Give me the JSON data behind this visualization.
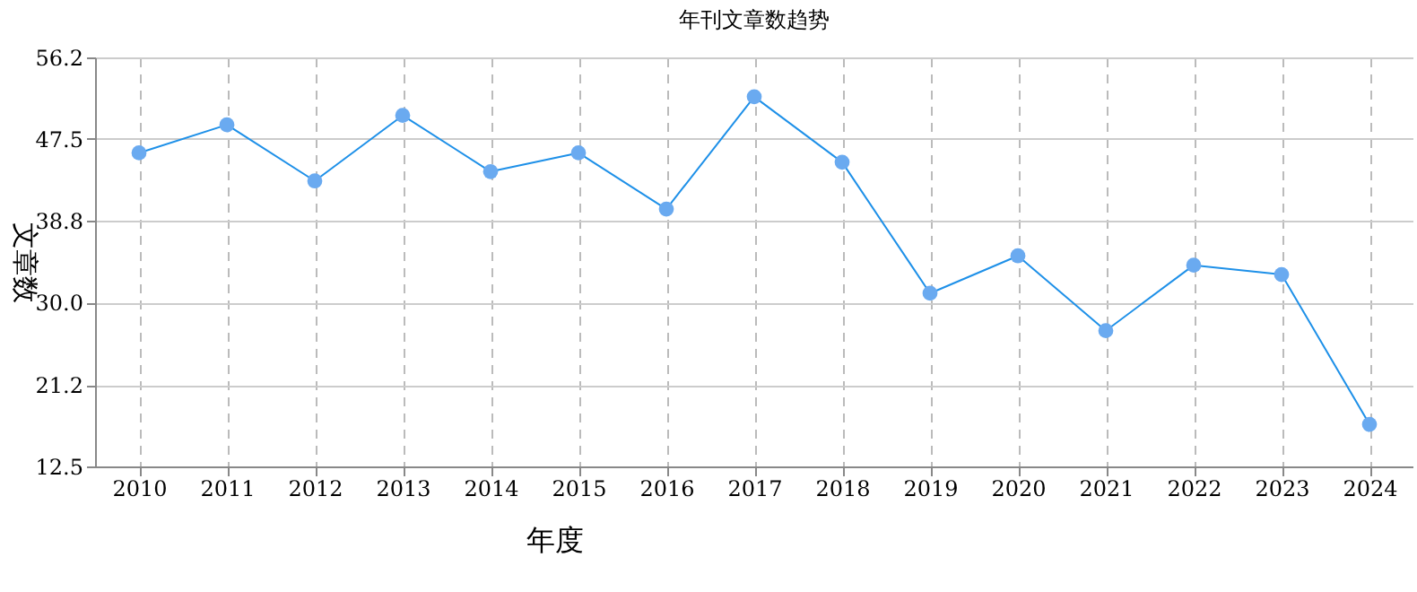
{
  "chart_data": {
    "type": "line",
    "title": "年刊文章数趋势",
    "xlabel": "年度",
    "ylabel": "文章数",
    "categories": [
      "2010",
      "2011",
      "2012",
      "2013",
      "2014",
      "2015",
      "2016",
      "2017",
      "2018",
      "2019",
      "2020",
      "2021",
      "2022",
      "2023",
      "2024"
    ],
    "series": [
      {
        "color": "#1e90e8",
        "values": [
          46,
          49,
          43,
          50,
          44,
          46,
          40,
          52,
          45,
          31,
          35,
          27,
          34,
          33,
          17
        ]
      }
    ],
    "ylim": [
      12.5,
      56.2
    ],
    "yticks": [
      12.5,
      21.2,
      {
        "value": 30.0,
        "label": "30.0"
      },
      38.8,
      47.5,
      56.2
    ],
    "grid": true,
    "marker": "circle",
    "line_style": "solid",
    "legend": false
  }
}
